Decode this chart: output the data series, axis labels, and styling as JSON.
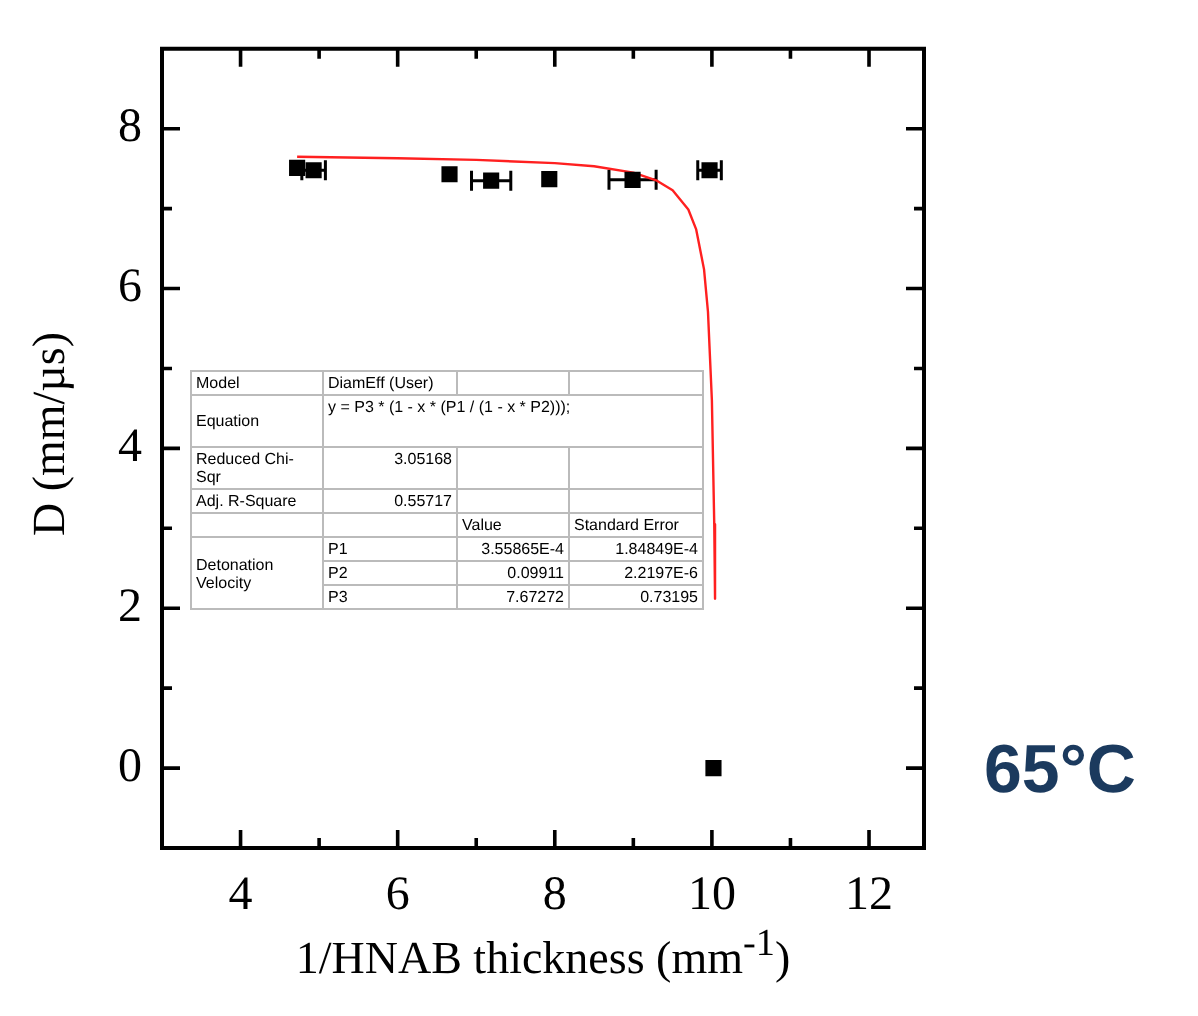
{
  "chart_data": {
    "type": "scatter",
    "xlabel": "1/HNAB thickness (mm$^{-1}$)",
    "ylabel": "D (mm/µs)",
    "xlim": [
      3,
      12.7
    ],
    "ylim": [
      -1,
      9
    ],
    "xticks": [
      4,
      {
        "value": 5,
        "label": null
      },
      6,
      {
        "value": 7,
        "label": null
      },
      8,
      {
        "value": 9,
        "label": null
      },
      10,
      {
        "value": 11,
        "label": null
      },
      12
    ],
    "yticks": [
      0,
      {
        "value": 1,
        "label": null
      },
      2,
      {
        "value": 3,
        "label": null
      },
      4,
      {
        "value": 5,
        "label": null
      },
      6,
      {
        "value": 7,
        "label": null
      },
      8
    ],
    "grid": false,
    "legend": false,
    "marker": "square",
    "series": [
      {
        "color": "#000000",
        "x": [
          4.72,
          4.93,
          6.66,
          7.19,
          7.93,
          8.99,
          9.97,
          10.02
        ],
        "values": [
          7.51,
          7.48,
          7.43,
          7.35,
          7.37,
          7.36,
          7.48,
          0
        ],
        "xerrors": [
          null,
          0.15,
          null,
          0.25,
          null,
          0.3,
          0.15,
          null
        ]
      },
      {
        "type": "line",
        "color": "#ff2020",
        "marker": "none",
        "x": [
          4.72,
          6,
          7,
          8,
          8.5,
          9,
          9.3,
          9.5,
          9.7,
          9.8,
          9.9,
          9.95,
          10,
          10.03,
          10.04
        ],
        "values": [
          7.65,
          7.63,
          7.61,
          7.57,
          7.53,
          7.45,
          7.35,
          7.23,
          6.99,
          6.74,
          6.24,
          5.71,
          4.6,
          3.05,
          2.12
        ]
      }
    ],
    "annotations": [
      "Model",
      "DiamEff (User)",
      "Equation",
      "y = P3 * (1 - x * (P1 / (1 - x * P2)));",
      "Reduced Chi-Sqr",
      "3.05168",
      "Adj. R-Square",
      "0.55717",
      "Value",
      "Standard Error",
      "Detonation Velocity",
      "P1",
      "3.55865E-4",
      "1.84849E-4",
      "P2",
      "0.09911",
      "2.2197E-6",
      "P3",
      "7.67272",
      "0.73195",
      "65°C"
    ]
  }
}
